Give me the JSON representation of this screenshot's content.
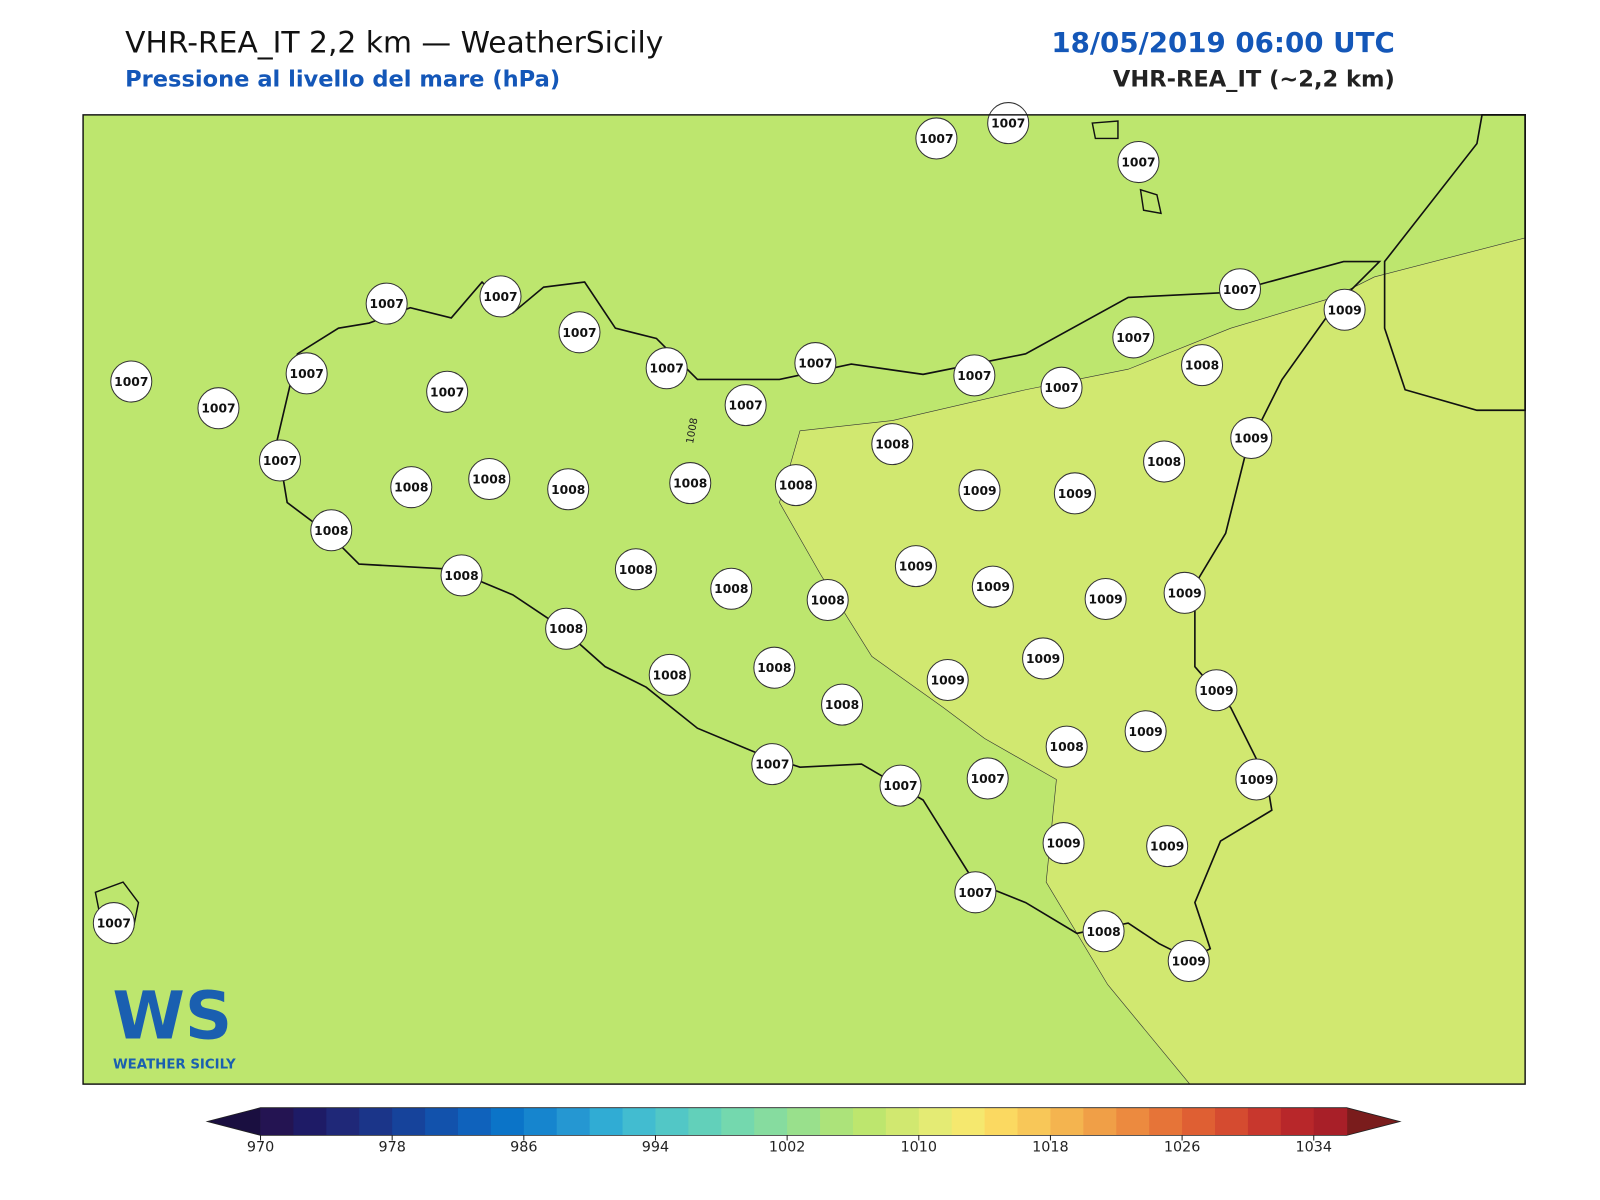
{
  "header": {
    "title": "VHR-REA_IT 2,2 km — WeatherSicily",
    "subtitle": "Pressione al livello del mare (hPa)",
    "date": "18/05/2019 06:00 UTC",
    "model": "VHR-REA_IT (~2,2 km)"
  },
  "map": {
    "contour_label": "1008",
    "stations": [
      1007,
      1007,
      1007,
      1007,
      1007,
      1007,
      1007,
      1009,
      1007,
      1007,
      1007,
      1007,
      1007,
      1007,
      1007,
      1007,
      1007,
      1007,
      1008,
      1007,
      1008,
      1008,
      1008,
      1008,
      1008,
      1008,
      1009,
      1009,
      1008,
      1009,
      1008,
      1008,
      1008,
      1008,
      1008,
      1009,
      1009,
      1009,
      1009,
      1008,
      1008,
      1008,
      1008,
      1009,
      1009,
      1009,
      1008,
      1009,
      1007,
      1007,
      1007,
      1009,
      1009,
      1009,
      1007,
      1008,
      1009,
      1007
    ]
  },
  "colorbar": {
    "lim": [
      970,
      1036
    ],
    "ticks": [
      970,
      978,
      986,
      994,
      1002,
      1010,
      1018,
      1026,
      1034
    ],
    "colors": [
      "#241452",
      "#1e1b66",
      "#1f2878",
      "#1b3589",
      "#16439b",
      "#1252ac",
      "#0f62bc",
      "#0b74c8",
      "#1685ce",
      "#2597d2",
      "#30acd4",
      "#42bcd0",
      "#52c7c6",
      "#62d0ba",
      "#74d8ae",
      "#86dc9f",
      "#99e08c",
      "#ace37a",
      "#bde66e",
      "#d1e870",
      "#e4eb74",
      "#f5e86e",
      "#fbd961",
      "#f8c758",
      "#f4b44f",
      "#f09f47",
      "#ec8a3f",
      "#e67438",
      "#df5f33",
      "#d54b30",
      "#c8372d",
      "#b8272a",
      "#a81f28"
    ]
  },
  "logo": {
    "mark": "WS",
    "name": "WEATHER SICILY"
  }
}
